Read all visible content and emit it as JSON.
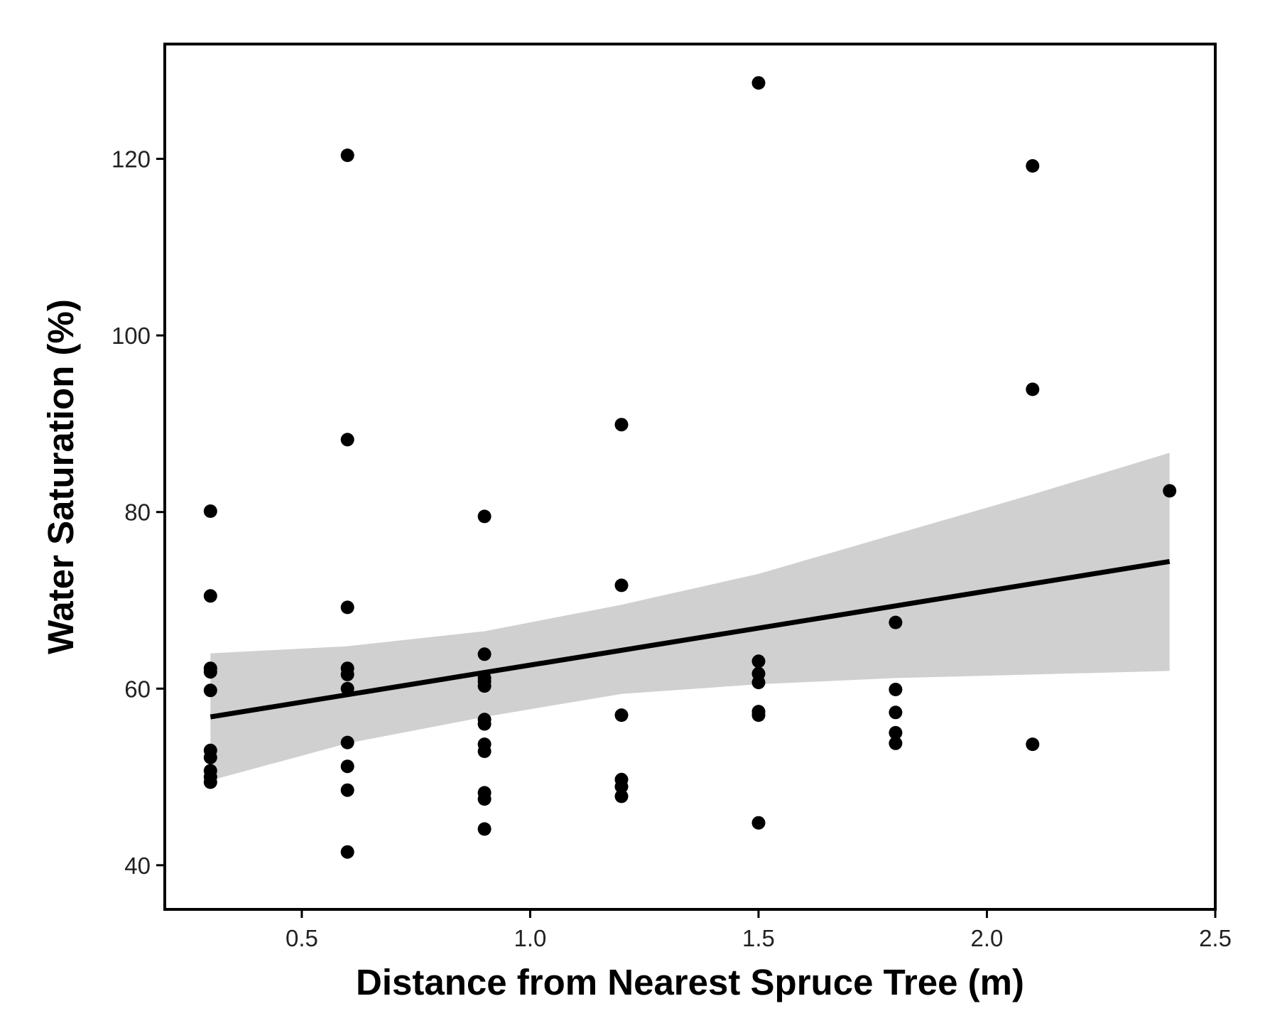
{
  "chart_data": {
    "type": "scatter",
    "title": "",
    "xlabel": "Distance from Nearest Spruce Tree (m)",
    "ylabel": "Water Saturation (%)",
    "xlim": [
      0.2,
      2.5
    ],
    "ylim": [
      35,
      133
    ],
    "x_ticks": [
      0.5,
      1.0,
      1.5,
      2.0,
      2.5
    ],
    "x_tick_labels": [
      "0.5",
      "1.0",
      "1.5",
      "2.0",
      "2.5"
    ],
    "y_ticks": [
      40,
      60,
      80,
      100,
      120
    ],
    "y_tick_labels": [
      "40",
      "60",
      "80",
      "100",
      "120"
    ],
    "grid": false,
    "points": [
      {
        "x": 0.3,
        "y": 80.1
      },
      {
        "x": 0.3,
        "y": 70.5
      },
      {
        "x": 0.3,
        "y": 62.3
      },
      {
        "x": 0.3,
        "y": 61.9
      },
      {
        "x": 0.3,
        "y": 59.8
      },
      {
        "x": 0.3,
        "y": 53.0
      },
      {
        "x": 0.3,
        "y": 52.2
      },
      {
        "x": 0.3,
        "y": 50.7
      },
      {
        "x": 0.3,
        "y": 50.0
      },
      {
        "x": 0.3,
        "y": 49.4
      },
      {
        "x": 0.6,
        "y": 120.4
      },
      {
        "x": 0.6,
        "y": 88.2
      },
      {
        "x": 0.6,
        "y": 69.2
      },
      {
        "x": 0.6,
        "y": 62.3
      },
      {
        "x": 0.6,
        "y": 61.6
      },
      {
        "x": 0.6,
        "y": 60.0
      },
      {
        "x": 0.6,
        "y": 53.9
      },
      {
        "x": 0.6,
        "y": 51.2
      },
      {
        "x": 0.6,
        "y": 48.5
      },
      {
        "x": 0.6,
        "y": 41.5
      },
      {
        "x": 0.9,
        "y": 79.5
      },
      {
        "x": 0.9,
        "y": 63.9
      },
      {
        "x": 0.9,
        "y": 61.2
      },
      {
        "x": 0.9,
        "y": 60.8
      },
      {
        "x": 0.9,
        "y": 60.3
      },
      {
        "x": 0.9,
        "y": 56.5
      },
      {
        "x": 0.9,
        "y": 56.0
      },
      {
        "x": 0.9,
        "y": 53.7
      },
      {
        "x": 0.9,
        "y": 52.9
      },
      {
        "x": 0.9,
        "y": 48.2
      },
      {
        "x": 0.9,
        "y": 47.5
      },
      {
        "x": 0.9,
        "y": 44.1
      },
      {
        "x": 1.2,
        "y": 89.9
      },
      {
        "x": 1.2,
        "y": 71.7
      },
      {
        "x": 1.2,
        "y": 57.0
      },
      {
        "x": 1.2,
        "y": 49.7
      },
      {
        "x": 1.2,
        "y": 48.9
      },
      {
        "x": 1.2,
        "y": 47.8
      },
      {
        "x": 1.5,
        "y": 128.6
      },
      {
        "x": 1.5,
        "y": 63.1
      },
      {
        "x": 1.5,
        "y": 61.7
      },
      {
        "x": 1.5,
        "y": 60.7
      },
      {
        "x": 1.5,
        "y": 57.4
      },
      {
        "x": 1.5,
        "y": 57.0
      },
      {
        "x": 1.5,
        "y": 44.8
      },
      {
        "x": 1.8,
        "y": 67.5
      },
      {
        "x": 1.8,
        "y": 59.9
      },
      {
        "x": 1.8,
        "y": 57.3
      },
      {
        "x": 1.8,
        "y": 55.0
      },
      {
        "x": 1.8,
        "y": 53.8
      },
      {
        "x": 2.1,
        "y": 119.2
      },
      {
        "x": 2.1,
        "y": 93.9
      },
      {
        "x": 2.1,
        "y": 53.7
      },
      {
        "x": 2.4,
        "y": 82.4
      }
    ],
    "regression": {
      "x": [
        0.3,
        2.4
      ],
      "y": [
        56.8,
        74.4
      ]
    },
    "confidence_band": {
      "x": [
        0.3,
        0.6,
        0.9,
        1.2,
        1.5,
        1.8,
        2.1,
        2.4
      ],
      "lower": [
        49.6,
        53.8,
        56.8,
        59.4,
        60.5,
        61.2,
        61.6,
        62.0
      ],
      "upper": [
        64.0,
        64.8,
        66.5,
        69.5,
        73.0,
        77.5,
        82.0,
        86.7
      ]
    },
    "colors": {
      "points": "#000000",
      "line": "#000000",
      "band": "#d0d0d0",
      "frame": "#000000"
    }
  }
}
